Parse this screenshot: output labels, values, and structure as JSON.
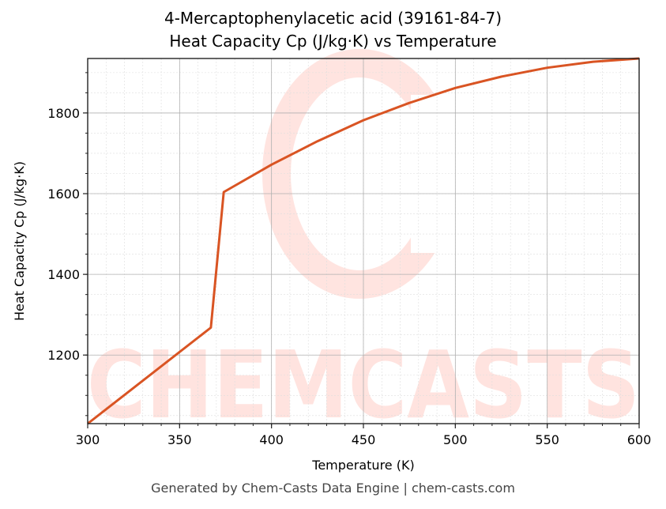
{
  "chart_data": {
    "type": "line",
    "title": "4-Mercaptophenylacetic acid (39161-84-7)",
    "subtitle": "Heat Capacity Cp (J/kg·K) vs Temperature",
    "xlabel": "Temperature (K)",
    "ylabel": "Heat Capacity Cp (J/kg·K)",
    "xlim": [
      300,
      600
    ],
    "ylim": [
      1030,
      1935
    ],
    "xticks": [
      300,
      350,
      400,
      450,
      500,
      550,
      600
    ],
    "yticks": [
      1200,
      1400,
      1600,
      1800
    ],
    "grid": true,
    "legend": null,
    "series": [
      {
        "name": "Cp",
        "color": "#d95423",
        "x": [
          300,
          367,
          374,
          400,
          425,
          450,
          475,
          500,
          525,
          550,
          575,
          600
        ],
        "y": [
          1030,
          1268,
          1604,
          1672,
          1730,
          1782,
          1825,
          1862,
          1890,
          1912,
          1927,
          1935
        ]
      }
    ],
    "watermark": "CHEMCASTS"
  },
  "footer": "Generated by Chem-Casts Data Engine | chem-casts.com"
}
